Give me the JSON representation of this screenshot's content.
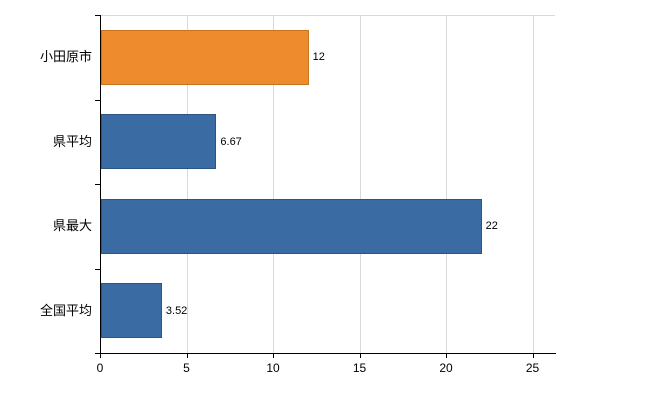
{
  "chart_data": {
    "type": "bar",
    "orientation": "horizontal",
    "title": "",
    "xlabel": "",
    "ylabel": "",
    "categories": [
      "小田原市",
      "県平均",
      "県最大",
      "全国平均"
    ],
    "values": [
      12,
      6.67,
      22,
      3.52
    ],
    "value_labels": [
      "12",
      "6.67",
      "22",
      "3.52"
    ],
    "bar_colors": [
      "#ee8c2d",
      "#3a6ca3",
      "#3a6ca3",
      "#3a6ca3"
    ],
    "bar_border_colors": [
      "#c9751f",
      "#2d5584",
      "#2d5584",
      "#2d5584"
    ],
    "xticks": [
      "0",
      "5",
      "10",
      "15",
      "20",
      "25"
    ],
    "xtick_values": [
      0,
      5,
      10,
      15,
      20,
      25
    ],
    "xlim": [
      0,
      26.3
    ],
    "grid": true,
    "legend": false,
    "axis_color": "#000000",
    "grid_color": "#d9d9d9",
    "text_color": "#000000",
    "background_color": "#ffffff"
  }
}
